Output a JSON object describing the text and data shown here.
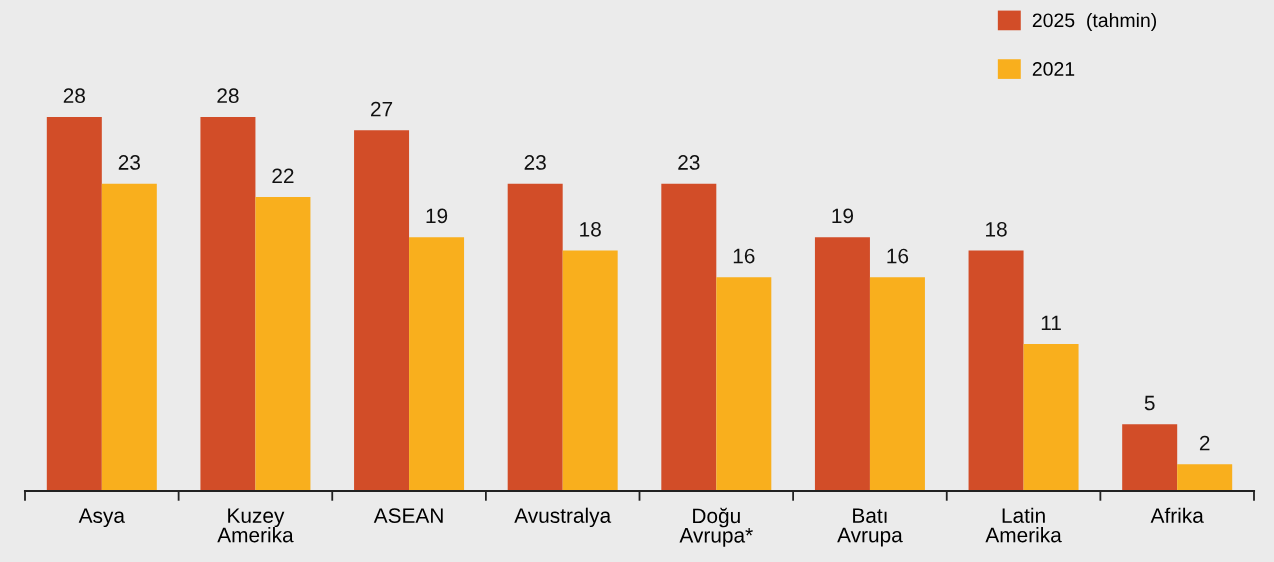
{
  "chart_data": {
    "type": "bar",
    "categories": [
      "Asya",
      "Kuzey Amerika",
      "ASEAN",
      "Avustralya",
      "Doğu Avrupa*",
      "Batı Avrupa",
      "Latin Amerika",
      "Afrika"
    ],
    "series": [
      {
        "name": "2025  (tahmin)",
        "color": "#d24d28",
        "values": [
          28,
          28,
          27,
          23,
          23,
          19,
          18,
          5
        ]
      },
      {
        "name": "2021",
        "color": "#f9af1d",
        "values": [
          23,
          22,
          19,
          18,
          16,
          16,
          11,
          2
        ]
      }
    ],
    "data_labels": true,
    "legend": "top right",
    "grid": false,
    "tick_labels": "x"
  }
}
